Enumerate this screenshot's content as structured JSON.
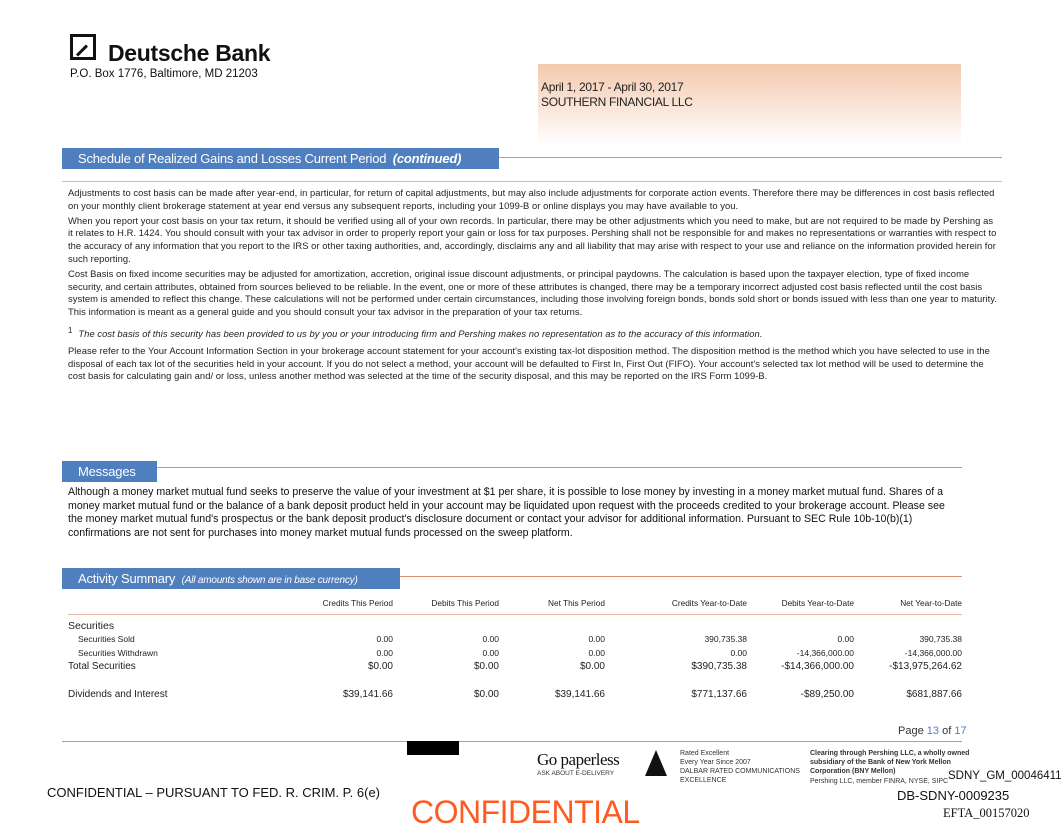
{
  "header": {
    "bank_name": "Deutsche Bank",
    "address": "P.O. Box 1776, Baltimore, MD 21203",
    "period": "April 1, 2017 - April 30, 2017",
    "account_name": "SOUTHERN FINANCIAL LLC"
  },
  "schedule": {
    "title": "Schedule of Realized Gains and Losses Current Period",
    "title_suffix": "(continued)",
    "paragraphs": [
      "Adjustments to cost basis can be made after year-end, in particular, for return of capital adjustments, but may also include adjustments for corporate action events. Therefore there may be differences in cost basis reflected on your monthly client brokerage statement at year end versus any subsequent reports, including your 1099-B or online displays you may have available to you.",
      "When you report your cost basis on your tax return, it should be verified using all of your own records. In particular, there may be other adjustments which you need to make, but are not required to be made by Pershing as it relates to H.R. 1424. You should consult with your tax advisor in order to properly report your gain or loss for tax purposes. Pershing shall not be responsible for and makes no representations or warranties with respect to the accuracy of any information that you  report to the IRS or other taxing authorities, and, accordingly, disclaims any and all liability that may arise with respect to your use and reliance on the information provided herein for such reporting.",
      "Cost Basis on fixed income securities may be adjusted for amortization, accretion, original issue discount adjustments, or principal paydowns. The calculation is based upon the taxpayer election, type of fixed income security, and certain attributes, obtained from sources believed to be reliable. In the event, one or more of these attributes is changed, there may be a temporary incorrect adjusted cost basis reflected until the cost basis system is amended to reflect this change. These calculations will not be performed under certain circumstances, including those involving foreign bonds,  bonds sold short or bonds issued with less than one year to maturity. This information is meant as a general guide and you should consult your tax advisor in the preparation of your tax returns."
    ],
    "footnote_marker": "1",
    "footnote": "The cost basis of this security has been provided to us by you or your introducing firm and Pershing makes no representation as to the accuracy of this information.",
    "disposition": "Please refer to the Your Account Information Section in your brokerage account statement for your account's existing tax-lot disposition method. The disposition method is the method which you have selected to use in the disposal of each tax lot of the securities held in your account. If you do not select a method, your account will be defaulted to First In, First Out (FIFO). Your account's selected tax lot method will be used to determine the cost basis for calculating gain and/ or loss, unless another method was selected at the time of the security disposal, and this may be reported on the IRS Form 1099-B."
  },
  "messages": {
    "title": "Messages",
    "text": "Although a money market mutual fund seeks to preserve the value of your investment at $1 per share, it is possible to lose money by investing in a money market mutual fund. Shares of a money market mutual fund or the balance of a bank deposit product held in your account may be liquidated upon request with the proceeds credited to your brokerage account. Please see the money market mutual fund's prospectus or the bank deposit product's disclosure document or contact your advisor for additional information. Pursuant to SEC Rule 10b-10(b)(1) confirmations are not sent for purchases into money market mutual funds processed on the sweep platform."
  },
  "activity": {
    "title": "Activity Summary",
    "subtitle": "(All amounts shown are in base currency)",
    "columns": [
      "Credits This Period",
      "Debits This Period",
      "Net This Period",
      "Credits Year-to-Date",
      "Debits Year-to-Date",
      "Net Year-to-Date"
    ],
    "section_label": "Securities",
    "rows": [
      {
        "label": "Securities Sold",
        "values": [
          "0.00",
          "0.00",
          "0.00",
          "390,735.38",
          "0.00",
          "390,735.38"
        ]
      },
      {
        "label": "Securities Withdrawn",
        "values": [
          "0.00",
          "0.00",
          "0.00",
          "0.00",
          "-14,366,000.00",
          "-14,366,000.00"
        ]
      }
    ],
    "total": {
      "label": "Total Securities",
      "values": [
        "$0.00",
        "$0.00",
        "$0.00",
        "$390,735.38",
        "-$14,366,000.00",
        "-$13,975,264.62"
      ]
    },
    "dividends": {
      "label": "Dividends and Interest",
      "values": [
        "$39,141.66",
        "$0.00",
        "$39,141.66",
        "$771,137.66",
        "-$89,250.00",
        "$681,887.66"
      ]
    }
  },
  "footer": {
    "page_label": "Page",
    "page_current": "13",
    "page_of": "of",
    "page_total": "17",
    "go_paperless": "Go paperless",
    "e_delivery": "ASK ABOUT E-DELIVERY",
    "dalbar": [
      "Rated Excellent",
      "Every Year Since 2007",
      "DALBAR RATED COMMUNICATIONS",
      "EXCELLENCE"
    ],
    "clearing": [
      "Clearing through Pershing LLC, a wholly owned",
      "subsidiary of the Bank of New York Mellon",
      "Corporation (BNY Mellon)"
    ],
    "pershing_member": "Pershing LLC, member FINRA, NYSE, SIPC",
    "confidential_notice": "CONFIDENTIAL – PURSUANT TO FED. R. CRIM. P. 6(e)",
    "confidential_stamp": "CONFIDENTIAL",
    "bates1": "SDNY_GM_00046411",
    "bates2": "DB-SDNY-0009235",
    "efta": "EFTA_00157020"
  },
  "colors": {
    "section_bar": "#4f7fbf",
    "rule": "#d8946a",
    "stamp": "#ff5a1f",
    "page_number": "#4f7fbf"
  }
}
